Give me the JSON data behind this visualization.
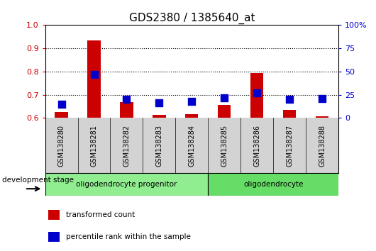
{
  "title": "GDS2380 / 1385640_at",
  "samples": [
    "GSM138280",
    "GSM138281",
    "GSM138282",
    "GSM138283",
    "GSM138284",
    "GSM138285",
    "GSM138286",
    "GSM138287",
    "GSM138288"
  ],
  "transformed_count": [
    0.625,
    0.935,
    0.668,
    0.613,
    0.617,
    0.655,
    0.795,
    0.635,
    0.607
  ],
  "percentile_rank": [
    15,
    47,
    20,
    16,
    18,
    22,
    27,
    20,
    21
  ],
  "ylim_left": [
    0.6,
    1.0
  ],
  "ylim_right": [
    0,
    100
  ],
  "groups": [
    {
      "label": "oligodendrocyte progenitor",
      "start": 0,
      "end": 5,
      "color": "#90EE90"
    },
    {
      "label": "oligodendrocyte",
      "start": 5,
      "end": 9,
      "color": "#66DD66"
    }
  ],
  "bar_color": "#CC0000",
  "dot_color": "#0000CC",
  "bar_width": 0.4,
  "dot_size": 55,
  "background_color": "#ffffff",
  "sample_bg": "#D3D3D3",
  "tick_color_left": "#CC0000",
  "tick_color_right": "#0000CC",
  "yticks_left": [
    0.6,
    0.7,
    0.8,
    0.9,
    1.0
  ],
  "yticks_right": [
    0,
    25,
    50,
    75,
    100
  ],
  "ytick_right_labels": [
    "0",
    "25",
    "50",
    "75",
    "100%"
  ],
  "legend_items": [
    {
      "label": "transformed count",
      "color": "#CC0000"
    },
    {
      "label": "percentile rank within the sample",
      "color": "#0000CC"
    }
  ],
  "dev_stage_label": "development stage",
  "title_fontsize": 11,
  "tick_fontsize": 8,
  "label_fontsize": 7
}
